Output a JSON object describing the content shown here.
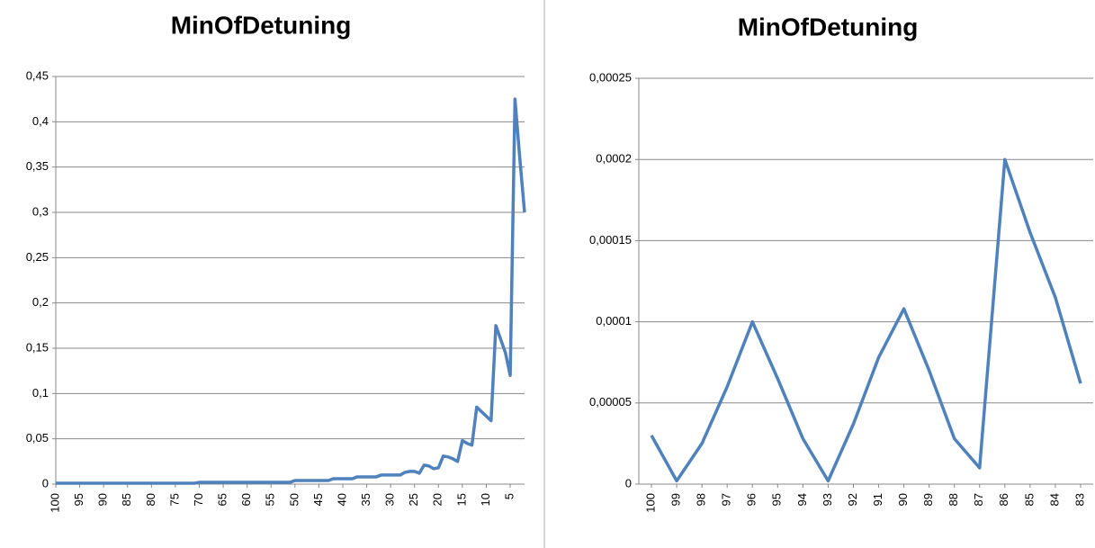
{
  "chart_data": [
    {
      "type": "line",
      "title": "MinOfDetuning",
      "categories": [
        "100",
        null,
        null,
        null,
        null,
        "95",
        null,
        null,
        null,
        null,
        "90",
        null,
        null,
        null,
        null,
        "85",
        null,
        null,
        null,
        null,
        "80",
        null,
        null,
        null,
        null,
        "75",
        null,
        null,
        null,
        null,
        "70",
        null,
        null,
        null,
        null,
        "65",
        null,
        null,
        null,
        null,
        "60",
        null,
        null,
        null,
        null,
        "55",
        null,
        null,
        null,
        null,
        "50",
        null,
        null,
        null,
        null,
        "45",
        null,
        null,
        null,
        null,
        "40",
        null,
        null,
        null,
        null,
        "35",
        null,
        null,
        null,
        null,
        "30",
        null,
        null,
        null,
        null,
        "25",
        null,
        null,
        null,
        null,
        "20",
        null,
        null,
        null,
        null,
        "15",
        null,
        null,
        null,
        null,
        "10",
        null,
        null,
        null,
        null,
        "5",
        null,
        null,
        null
      ],
      "values": [
        0.001,
        0.001,
        0.001,
        0.001,
        0.001,
        0.001,
        0.001,
        0.001,
        0.001,
        0.001,
        0.001,
        0.001,
        0.001,
        0.001,
        0.001,
        0.001,
        0.001,
        0.001,
        0.001,
        0.001,
        0.001,
        0.001,
        0.001,
        0.001,
        0.001,
        0.001,
        0.001,
        0.001,
        0.001,
        0.001,
        0.002,
        0.002,
        0.002,
        0.002,
        0.002,
        0.002,
        0.002,
        0.002,
        0.002,
        0.002,
        0.002,
        0.002,
        0.002,
        0.002,
        0.002,
        0.002,
        0.002,
        0.002,
        0.002,
        0.002,
        0.004,
        0.004,
        0.004,
        0.004,
        0.004,
        0.004,
        0.004,
        0.004,
        0.006,
        0.006,
        0.006,
        0.006,
        0.006,
        0.008,
        0.008,
        0.008,
        0.008,
        0.008,
        0.01,
        0.01,
        0.01,
        0.01,
        0.01,
        0.013,
        0.014,
        0.014,
        0.012,
        0.021,
        0.02,
        0.017,
        0.018,
        0.031,
        0.03,
        0.028,
        0.025,
        0.048,
        0.045,
        0.043,
        0.085,
        0.08,
        0.075,
        0.07,
        0.175,
        0.16,
        0.145,
        0.12,
        0.425,
        0.36,
        0.3
      ],
      "color": "#4f81bd",
      "ylim": [
        0,
        0.45
      ],
      "yticks": [
        0,
        {
          "value": 0.05,
          "label": "0,05"
        },
        {
          "value": 0.1,
          "label": "0,1"
        },
        {
          "value": 0.15,
          "label": "0,15"
        },
        {
          "value": 0.2,
          "label": "0,2"
        },
        {
          "value": 0.25,
          "label": "0,25"
        },
        {
          "value": 0.3,
          "label": "0,3"
        },
        {
          "value": 0.35,
          "label": "0,35"
        },
        {
          "value": 0.4,
          "label": "0,4"
        },
        {
          "value": 0.45,
          "label": "0,45"
        }
      ],
      "grid": true
    },
    {
      "type": "line",
      "title": "MinOfDetuning",
      "categories": [
        "100",
        "99",
        "98",
        "97",
        "96",
        "95",
        "94",
        "93",
        "92",
        "91",
        "90",
        "89",
        "88",
        "87",
        "86",
        "85",
        "84",
        "83"
      ],
      "values": [
        3e-05,
        2e-06,
        2.5e-05,
        6e-05,
        0.0001,
        6.5e-05,
        2.8e-05,
        2e-06,
        3.7e-05,
        7.8e-05,
        0.000108,
        7e-05,
        2.8e-05,
        1e-05,
        0.0002,
        0.000155,
        0.000115,
        6.2e-05
      ],
      "color": "#4f81bd",
      "ylim": [
        0,
        0.00025
      ],
      "yticks": [
        0,
        {
          "value": 5e-05,
          "label": "0,00005"
        },
        {
          "value": 0.0001,
          "label": "0,0001"
        },
        {
          "value": 0.00015,
          "label": "0,00015"
        },
        {
          "value": 0.0002,
          "label": "0,0002"
        },
        {
          "value": 0.00025,
          "label": "0,00025"
        }
      ],
      "grid": true
    }
  ]
}
